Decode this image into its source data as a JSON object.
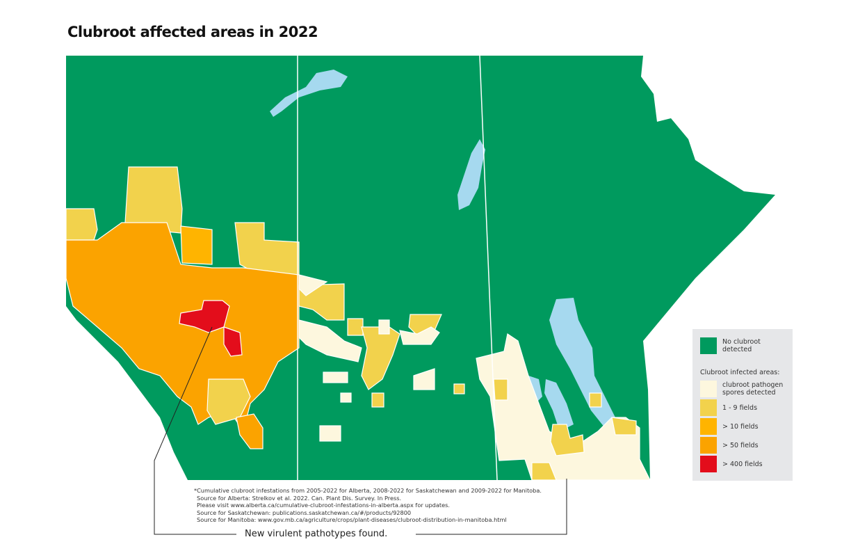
{
  "title": "Clubroot affected areas in 2022",
  "legend": {
    "no_clubroot": {
      "label": "No clubroot detected",
      "color": "#009a5e"
    },
    "infected_heading": "Clubroot infected areas:",
    "items": [
      {
        "label": "clubroot pathogen spores detected",
        "color": "#fdf7de"
      },
      {
        "label": "1 - 9 fields",
        "color": "#f2d24c"
      },
      {
        "label": "> 10 fields",
        "color": "#ffb400"
      },
      {
        "label": "> 50 fields",
        "color": "#fba300"
      },
      {
        "label": "> 400 fields",
        "color": "#e30d1b"
      }
    ]
  },
  "water_color": "#a6d9ef",
  "notes": [
    "*Cumulative clubroot infestations from 2005-2022 for Alberta, 2008-2022 for Saskatchewan and 2009-2022 for Manitoba.",
    "Source for Alberta: Strelkov et al. 2022. Can. Plant Dis. Survey. In Press.",
    "Please visit www.alberta.ca/cumulative-clubroot-infestations-in-alberta.aspx for updates.",
    "Source for Saskatchewan: publications.saskatchewan.ca/#/products/92800",
    "Source for Manitoba: www.gov.mb.ca/agriculture/crops/plant-diseases/clubroot-distribution-in-manitoba.html"
  ],
  "callout": "New virulent pathotypes found."
}
